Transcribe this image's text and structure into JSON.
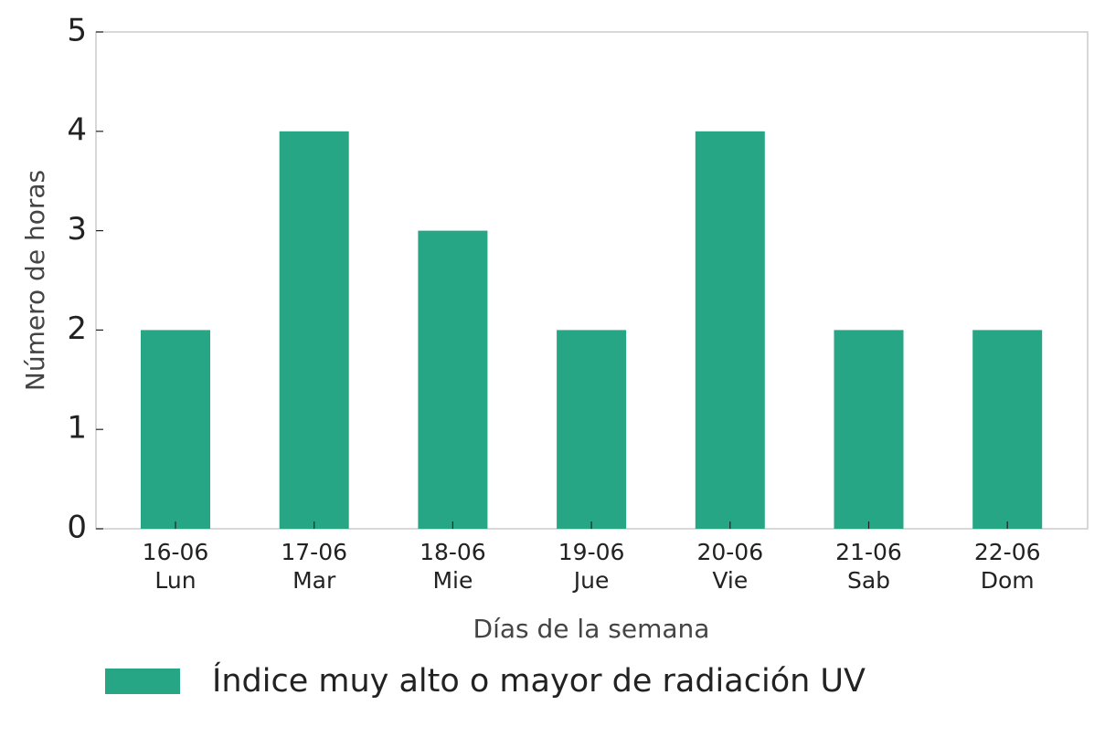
{
  "chart_data": {
    "type": "bar",
    "x_label": "Días de la semana",
    "y_label": "Número de horas",
    "categories": [
      "16-06\nLun",
      "17-06\nMar",
      "18-06\nMie",
      "19-06\nJue",
      "20-06\nVie",
      "21-06\nSab",
      "22-06\nDom"
    ],
    "series": [
      {
        "name": "Índice muy alto o mayor de radiación UV",
        "color": "#27a685",
        "values": [
          2,
          4,
          3,
          2,
          4,
          2,
          2
        ]
      }
    ],
    "ylim": [
      0,
      5
    ],
    "yticks": [
      0,
      1,
      2,
      3,
      4,
      5
    ],
    "grid": false,
    "legend": "bottom"
  }
}
